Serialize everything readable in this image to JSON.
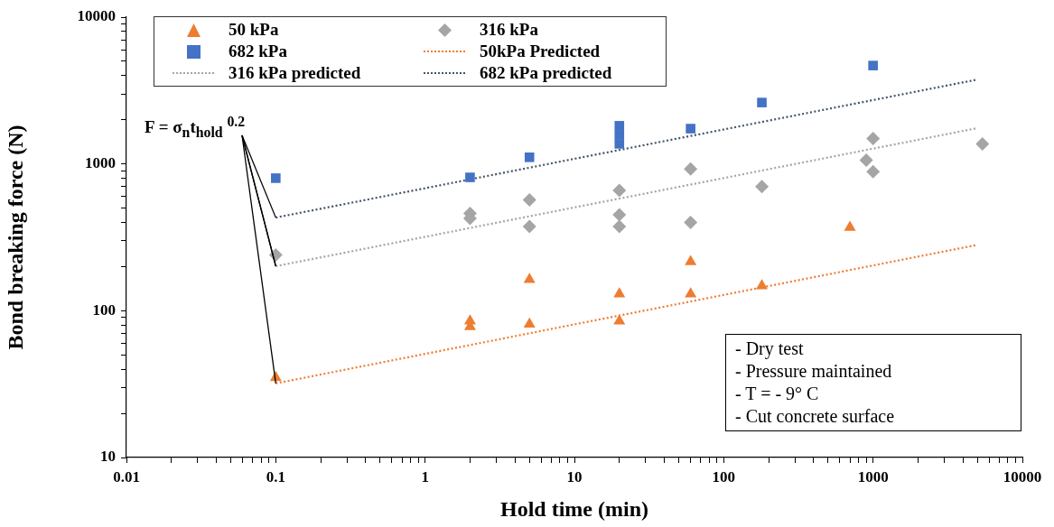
{
  "chart_data": {
    "type": "scatter",
    "xlabel": "Hold time (min)",
    "ylabel": "Bond breaking force (N)",
    "log": "xy",
    "grid": false,
    "legend": "top left",
    "xlim": [
      0.01,
      10000
    ],
    "ylim": [
      10,
      10000
    ],
    "xticks": [
      0.01,
      {
        "value": 0.02,
        "label": null
      },
      {
        "value": 0.03,
        "label": null
      },
      {
        "value": 0.04,
        "label": null
      },
      {
        "value": 0.05,
        "label": null
      },
      {
        "value": 0.06,
        "label": null
      },
      {
        "value": 0.07,
        "label": null
      },
      {
        "value": 0.08,
        "label": null
      },
      {
        "value": 0.09,
        "label": null
      },
      0.1,
      {
        "value": 0.2,
        "label": null
      },
      {
        "value": 0.3,
        "label": null
      },
      {
        "value": 0.4,
        "label": null
      },
      {
        "value": 0.5,
        "label": null
      },
      {
        "value": 0.6,
        "label": null
      },
      {
        "value": 0.7,
        "label": null
      },
      {
        "value": 0.8,
        "label": null
      },
      {
        "value": 0.9,
        "label": null
      },
      1,
      {
        "value": 2,
        "label": null
      },
      {
        "value": 3,
        "label": null
      },
      {
        "value": 4,
        "label": null
      },
      {
        "value": 5,
        "label": null
      },
      {
        "value": 6,
        "label": null
      },
      {
        "value": 7,
        "label": null
      },
      {
        "value": 8,
        "label": null
      },
      {
        "value": 9,
        "label": null
      },
      10,
      {
        "value": 20,
        "label": null
      },
      {
        "value": 30,
        "label": null
      },
      {
        "value": 40,
        "label": null
      },
      {
        "value": 50,
        "label": null
      },
      {
        "value": 60,
        "label": null
      },
      {
        "value": 70,
        "label": null
      },
      {
        "value": 80,
        "label": null
      },
      {
        "value": 90,
        "label": null
      },
      100,
      {
        "value": 200,
        "label": null
      },
      {
        "value": 300,
        "label": null
      },
      {
        "value": 400,
        "label": null
      },
      {
        "value": 500,
        "label": null
      },
      {
        "value": 600,
        "label": null
      },
      {
        "value": 700,
        "label": null
      },
      {
        "value": 800,
        "label": null
      },
      {
        "value": 900,
        "label": null
      },
      1000,
      {
        "value": 2000,
        "label": null
      },
      {
        "value": 3000,
        "label": null
      },
      {
        "value": 4000,
        "label": null
      },
      {
        "value": 5000,
        "label": null
      },
      {
        "value": 6000,
        "label": null
      },
      {
        "value": 7000,
        "label": null
      },
      {
        "value": 8000,
        "label": null
      },
      {
        "value": 9000,
        "label": null
      },
      10000
    ],
    "yticks": [
      10,
      {
        "value": 20,
        "label": null
      },
      {
        "value": 30,
        "label": null
      },
      {
        "value": 40,
        "label": null
      },
      {
        "value": 50,
        "label": null
      },
      {
        "value": 60,
        "label": null
      },
      {
        "value": 70,
        "label": null
      },
      {
        "value": 80,
        "label": null
      },
      {
        "value": 90,
        "label": null
      },
      100,
      {
        "value": 200,
        "label": null
      },
      {
        "value": 300,
        "label": null
      },
      {
        "value": 400,
        "label": null
      },
      {
        "value": 500,
        "label": null
      },
      {
        "value": 600,
        "label": null
      },
      {
        "value": 700,
        "label": null
      },
      {
        "value": 800,
        "label": null
      },
      {
        "value": 900,
        "label": null
      },
      1000,
      {
        "value": 2000,
        "label": null
      },
      {
        "value": 3000,
        "label": null
      },
      {
        "value": 4000,
        "label": null
      },
      {
        "value": 5000,
        "label": null
      },
      {
        "value": 6000,
        "label": null
      },
      {
        "value": 7000,
        "label": null
      },
      {
        "value": 8000,
        "label": null
      },
      {
        "value": 9000,
        "label": null
      },
      10000
    ],
    "series": [
      {
        "name": "50 kPa",
        "marker": "triangle",
        "color": "#ed7d31",
        "x": [
          0.1,
          2,
          2,
          5,
          5,
          20,
          20,
          60,
          60,
          180,
          700
        ],
        "values": [
          35,
          85,
          78,
          163,
          81,
          130,
          85,
          216,
          130,
          148,
          370
        ]
      },
      {
        "name": "316 kPa",
        "marker": "diamond",
        "color": "#a5a5a5",
        "x": [
          0.1,
          2,
          2,
          5,
          5,
          20,
          20,
          20,
          60,
          60,
          180,
          900,
          1000,
          1000,
          5400
        ],
        "values": [
          240,
          460,
          425,
          570,
          375,
          660,
          450,
          375,
          925,
          400,
          700,
          1060,
          1490,
          885,
          1370
        ]
      },
      {
        "name": "682 kPa",
        "marker": "square",
        "color": "#4472c4",
        "x": [
          0.1,
          2,
          5,
          20,
          20,
          20,
          60,
          180,
          1000
        ],
        "values": [
          800,
          810,
          1110,
          1820,
          1580,
          1370,
          1740,
          2620,
          4680
        ]
      },
      {
        "name": "50kPa Predicted",
        "type": "line",
        "marker": "none",
        "line_style": "dotted",
        "color": "#ed7d31",
        "x": [
          0.1,
          5000
        ],
        "values": [
          32,
          281
        ]
      },
      {
        "name": "316 kPa predicted",
        "type": "line",
        "marker": "none",
        "line_style": "dotted",
        "color": "#a5a5a5",
        "x": [
          0.1,
          5000
        ],
        "values": [
          201,
          1754
        ]
      },
      {
        "name": "682 kPa predicted",
        "type": "line",
        "marker": "none",
        "line_style": "dotted",
        "color": "#44546a",
        "x": [
          0.1,
          5000
        ],
        "values": [
          431,
          3758
        ]
      }
    ],
    "annotations": [
      {
        "text": "F = σ$_{n}$t$_{hold}$ $^{0.2}$",
        "x": 0.1,
        "y": 201
      },
      "- Dry test",
      "- Pressure maintained",
      "- T = - 9° C",
      "- Cut concrete surface"
    ]
  }
}
